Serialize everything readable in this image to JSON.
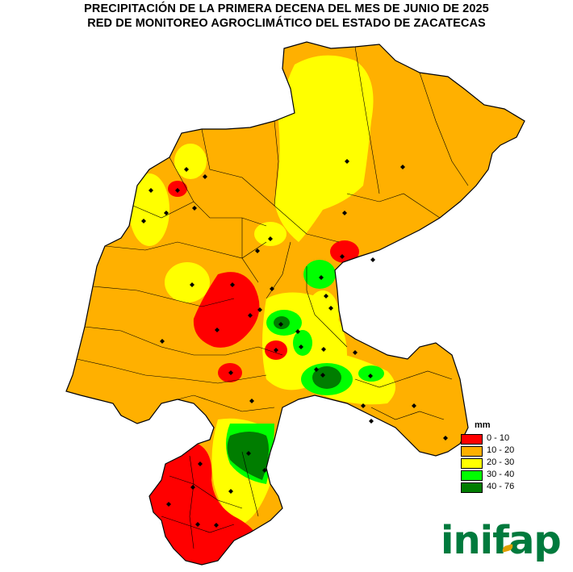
{
  "title_line1": "PRECIPITACIÓN DE LA PRIMERA DECENA DEL MES DE JUNIO DE 2025",
  "title_line2": "RED DE MONITOREO AGROCLIMÁTICO DEL ESTADO DE ZACATECAS",
  "legend": {
    "unit": "mm",
    "classes": [
      {
        "label": "0 - 10",
        "color": "#ff0000"
      },
      {
        "label": "10 - 20",
        "color": "#ffb000"
      },
      {
        "label": "20 - 30",
        "color": "#ffff00"
      },
      {
        "label": "30 - 40",
        "color": "#00ff00"
      },
      {
        "label": "40 - 76",
        "color": "#007d00"
      }
    ]
  },
  "colors": {
    "base": "#ffb000",
    "low": "#ff0000",
    "mid": "#ffff00",
    "high": "#00ff00",
    "max": "#007d00",
    "station": "#000000",
    "logo": "#007a3d"
  },
  "logo_text": "inifap",
  "station_marker": "diamond",
  "station_count": 47
}
